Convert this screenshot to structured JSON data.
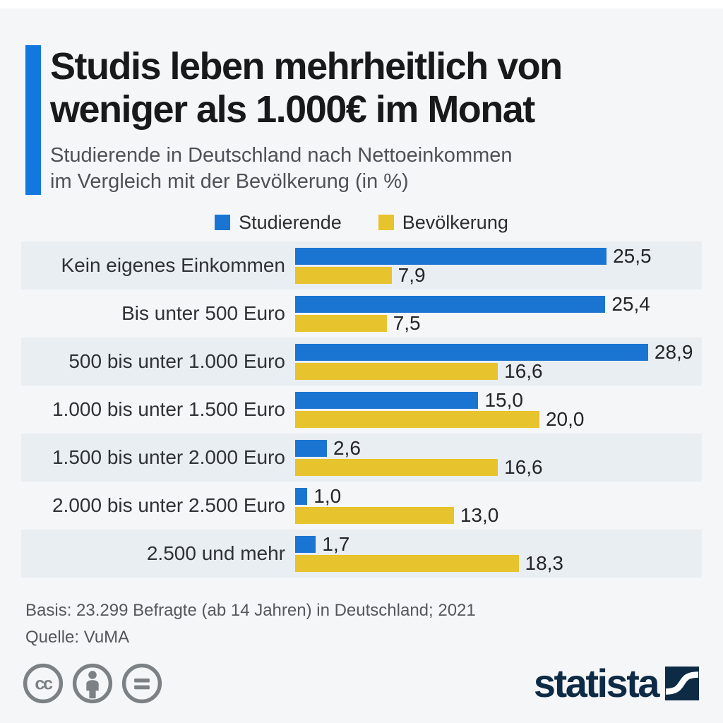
{
  "header": {
    "title_line1": "Studis leben mehrheitlich von",
    "title_line2": "weniger als 1.000€ im Monat",
    "subtitle_line1": "Studierende in Deutschland nach Nettoeinkommen",
    "subtitle_line2": "im Vergleich mit der Bevölkerung (in %)"
  },
  "chart_data": {
    "type": "bar",
    "orientation": "horizontal",
    "unit": "%",
    "title": "Studis leben mehrheitlich von weniger als 1.000€ im Monat",
    "subtitle": "Studierende in Deutschland nach Nettoeinkommen im Vergleich mit der Bevölkerung (in %)",
    "categories": [
      "Kein eigenes Einkommen",
      "Bis unter 500 Euro",
      "500 bis unter 1.000 Euro",
      "1.000 bis unter 1.500 Euro",
      "1.500 bis unter 2.000 Euro",
      "2.000 bis unter 2.500 Euro",
      "2.500 und mehr"
    ],
    "series": [
      {
        "name": "Studierende",
        "color": "#1a75d2",
        "values": [
          25.5,
          25.4,
          28.9,
          15.0,
          2.6,
          1.0,
          1.7
        ],
        "labels": [
          "25,5",
          "25,4",
          "28,9",
          "15,0",
          "2,6",
          "1,0",
          "1,7"
        ]
      },
      {
        "name": "Bevölkerung",
        "color": "#e7c32d",
        "values": [
          7.9,
          7.5,
          16.6,
          20.0,
          16.6,
          13.0,
          18.3
        ],
        "labels": [
          "7,9",
          "7,5",
          "16,6",
          "20,0",
          "16,6",
          "13,0",
          "18,3"
        ]
      }
    ],
    "xlim": [
      0,
      33.3
    ],
    "grid": false,
    "legend_position": "top",
    "value_labels_shown": true
  },
  "footer": {
    "basis": "Basis: 23.299 Befragte (ab 14 Jahren) in Deutschland; 2021",
    "source": "Quelle: VuMA"
  },
  "branding": {
    "logo_text": "statista",
    "logo_color": "#0e2b45",
    "license_icons": [
      "cc-icon",
      "attribution-icon",
      "no-derivatives-icon"
    ]
  },
  "colors": {
    "accent": "#1377e0",
    "studierende_blue": "#1a75d2",
    "bevoelkerung_yellow": "#e7c32d",
    "background": "#f5f6f8",
    "row_stripe": "#e9eef3",
    "icon_gray": "#7b8184"
  }
}
